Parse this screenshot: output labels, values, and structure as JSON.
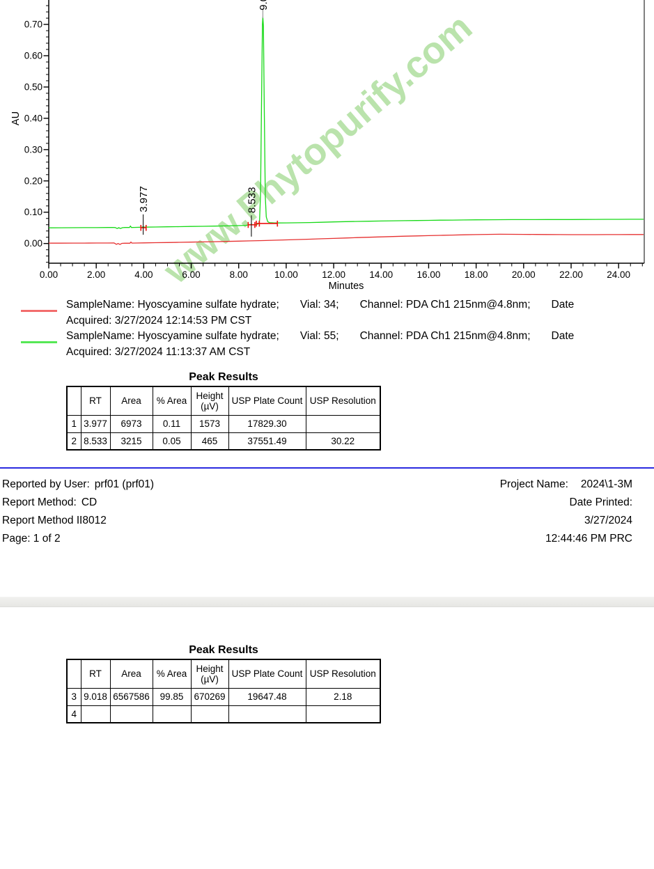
{
  "watermark": {
    "text": "www.Phytopurify.com",
    "color": "#aedf9e"
  },
  "chart_data": {
    "type": "line",
    "title": "",
    "xlabel": "Minutes",
    "ylabel": "AU",
    "xlim": [
      0,
      25.08
    ],
    "ylim": [
      -0.063,
      0.778
    ],
    "grid": false,
    "legend_position": "below",
    "axis_color": "#000000",
    "integration_color": "#ee1111",
    "xticks": {
      "values": [
        0,
        2,
        4,
        6,
        8,
        10,
        12,
        14,
        16,
        18,
        20,
        22,
        24
      ],
      "labels": [
        "0.00",
        "2.00",
        "4.00",
        "6.00",
        "8.00",
        "10.00",
        "12.00",
        "14.00",
        "16.00",
        "18.00",
        "20.00",
        "22.00",
        "24.00"
      ],
      "minor_step": 0.5
    },
    "yticks": {
      "values": [
        0,
        0.1,
        0.2,
        0.3,
        0.4,
        0.5,
        0.6,
        0.7
      ],
      "labels": [
        "0.00",
        "0.10",
        "0.20",
        "0.30",
        "0.40",
        "0.50",
        "0.60",
        "0.70"
      ],
      "minor_step": 0.02
    },
    "series": [
      {
        "name": "Vial 34 (red)",
        "name_id": "red-vial-34",
        "color": "#e63030",
        "points": [
          [
            0,
            0.001
          ],
          [
            0.5,
            0.0011
          ],
          [
            1,
            0.0013
          ],
          [
            1.5,
            0.0014
          ],
          [
            2,
            0.0015
          ],
          [
            2.5,
            0.0016
          ],
          [
            2.75,
            0.0017
          ],
          [
            2.85,
            -0.0026
          ],
          [
            2.92,
            0.0
          ],
          [
            3.0,
            -0.0031
          ],
          [
            3.08,
            0.0004
          ],
          [
            3.2,
            0.0008
          ],
          [
            3.42,
            0.0008
          ],
          [
            3.46,
            0.0047
          ],
          [
            3.5,
            0.0012
          ],
          [
            3.7,
            0.0016
          ],
          [
            4,
            0.002
          ],
          [
            4.5,
            0.0026
          ],
          [
            5,
            0.0031
          ],
          [
            5.5,
            0.0037
          ],
          [
            6,
            0.0044
          ],
          [
            6.5,
            0.0051
          ],
          [
            7,
            0.0058
          ],
          [
            7.5,
            0.0066
          ],
          [
            8,
            0.0075
          ],
          [
            8.5,
            0.0084
          ],
          [
            9,
            0.0094
          ],
          [
            9.5,
            0.0104
          ],
          [
            10,
            0.0115
          ],
          [
            10.5,
            0.0126
          ],
          [
            11,
            0.0138
          ],
          [
            11.5,
            0.015
          ],
          [
            12,
            0.0162
          ],
          [
            12.5,
            0.0175
          ],
          [
            13,
            0.0188
          ],
          [
            13.5,
            0.02
          ],
          [
            14,
            0.0211
          ],
          [
            14.5,
            0.0222
          ],
          [
            15,
            0.0233
          ],
          [
            15.5,
            0.0243
          ],
          [
            16,
            0.0252
          ],
          [
            16.5,
            0.0261
          ],
          [
            17,
            0.0269
          ],
          [
            17.5,
            0.0277
          ],
          [
            18,
            0.0284
          ],
          [
            18.5,
            0.0291
          ],
          [
            19,
            0.0295
          ],
          [
            19.5,
            0.0294
          ],
          [
            20,
            0.0291
          ],
          [
            20.5,
            0.0288
          ],
          [
            21,
            0.0286
          ],
          [
            21.5,
            0.0284
          ],
          [
            22,
            0.0283
          ],
          [
            22.5,
            0.0283
          ],
          [
            23,
            0.0283
          ],
          [
            23.5,
            0.0284
          ],
          [
            24,
            0.0285
          ],
          [
            24.5,
            0.0286
          ],
          [
            25.05,
            0.0287
          ]
        ]
      },
      {
        "name": "Vial 55 (green)",
        "name_id": "green-vial-55",
        "color": "#16d916",
        "points": [
          [
            0,
            0.05
          ],
          [
            0.5,
            0.0502
          ],
          [
            1,
            0.0504
          ],
          [
            1.5,
            0.0506
          ],
          [
            2,
            0.0508
          ],
          [
            2.5,
            0.0512
          ],
          [
            2.7,
            0.0514
          ],
          [
            2.8,
            0.051
          ],
          [
            2.88,
            0.0477
          ],
          [
            2.95,
            0.0504
          ],
          [
            3.02,
            0.0477
          ],
          [
            3.1,
            0.0504
          ],
          [
            3.2,
            0.0511
          ],
          [
            3.4,
            0.0512
          ],
          [
            3.44,
            0.0557
          ],
          [
            3.48,
            0.0512
          ],
          [
            3.6,
            0.0514
          ],
          [
            3.9,
            0.052
          ],
          [
            3.94,
            0.0523
          ],
          [
            3.977,
            0.0539
          ],
          [
            4.02,
            0.0525
          ],
          [
            4.08,
            0.0523
          ],
          [
            4.5,
            0.0528
          ],
          [
            5,
            0.0533
          ],
          [
            5.5,
            0.0538
          ],
          [
            6,
            0.0544
          ],
          [
            6.5,
            0.055
          ],
          [
            7,
            0.0556
          ],
          [
            7.5,
            0.0563
          ],
          [
            8,
            0.0572
          ],
          [
            8.3,
            0.058
          ],
          [
            8.45,
            0.0597
          ],
          [
            8.5,
            0.0602
          ],
          [
            8.533,
            0.0622
          ],
          [
            8.57,
            0.0603
          ],
          [
            8.65,
            0.06
          ],
          [
            8.75,
            0.0608
          ],
          [
            8.85,
            0.0635
          ],
          [
            8.88,
            0.075
          ],
          [
            8.92,
            0.16
          ],
          [
            8.96,
            0.45
          ],
          [
            9.0,
            0.7
          ],
          [
            9.018,
            0.723
          ],
          [
            9.04,
            0.695
          ],
          [
            9.08,
            0.42
          ],
          [
            9.12,
            0.15
          ],
          [
            9.16,
            0.085
          ],
          [
            9.22,
            0.07
          ],
          [
            9.3,
            0.0665
          ],
          [
            9.5,
            0.0655
          ],
          [
            9.63,
            0.0655
          ],
          [
            10,
            0.0658
          ],
          [
            10.5,
            0.0663
          ],
          [
            11,
            0.067
          ],
          [
            11.5,
            0.0678
          ],
          [
            12,
            0.069
          ],
          [
            12.5,
            0.0698
          ],
          [
            13,
            0.0705
          ],
          [
            13.5,
            0.0712
          ],
          [
            14,
            0.0718
          ],
          [
            14.5,
            0.0724
          ],
          [
            15,
            0.0729
          ],
          [
            15.5,
            0.0734
          ],
          [
            16,
            0.0739
          ],
          [
            16.5,
            0.0744
          ],
          [
            17,
            0.0748
          ],
          [
            17.5,
            0.0752
          ],
          [
            18,
            0.0756
          ],
          [
            18.5,
            0.0759
          ],
          [
            19,
            0.0761
          ],
          [
            19.5,
            0.0762
          ],
          [
            20,
            0.0762
          ],
          [
            20.5,
            0.0763
          ],
          [
            21,
            0.0764
          ],
          [
            21.5,
            0.0765
          ],
          [
            22,
            0.0766
          ],
          [
            22.5,
            0.0768
          ],
          [
            23,
            0.0769
          ],
          [
            23.5,
            0.0771
          ],
          [
            24,
            0.0772
          ],
          [
            24.5,
            0.0773
          ],
          [
            25.05,
            0.0775
          ]
        ]
      }
    ],
    "peaks": [
      {
        "rt": "3.977",
        "x": 3.977,
        "line": [
          0.093,
          0.028
        ],
        "label_y": 0.1,
        "line_color": "#222222"
      },
      {
        "rt": "8.533",
        "x": 8.533,
        "line": [
          0.09,
          0.022
        ],
        "label_y": 0.097,
        "line_color": "#222222"
      },
      {
        "rt": "9.018",
        "x": 9.018,
        "line": [
          0.749,
          0.72
        ],
        "label_y": 0.745,
        "line_color": "#999999"
      }
    ],
    "integration_marks": [
      {
        "x1": 3.88,
        "x2": 4.1,
        "y": 0.0505,
        "ticks": [
          3.88,
          4.1
        ]
      },
      {
        "x1": 8.4,
        "x2": 8.68,
        "y": 0.0598,
        "ticks": [
          8.4,
          8.68
        ]
      },
      {
        "x1": 8.74,
        "x2": 9.63,
        "y": 0.064,
        "ticks": [
          8.74,
          8.87,
          9.63
        ]
      }
    ]
  },
  "legend": {
    "entries": [
      {
        "color": "#f26d6d",
        "line1": [
          "SampleName: Hyoscyamine sulfate hydrate;",
          "Vial: 34;",
          "Channel: PDA Ch1 215nm@4.8nm;",
          "Date"
        ],
        "line2": "Acquired: 3/27/2024 12:14:53 PM CST"
      },
      {
        "color": "#55e855",
        "line1": [
          "SampleName: Hyoscyamine sulfate hydrate;",
          "Vial: 55;",
          "Channel: PDA Ch1 215nm@4.8nm;",
          "Date"
        ],
        "line2": "Acquired: 3/27/2024 11:13:37 AM CST"
      }
    ]
  },
  "peak_table_1": {
    "title": "Peak Results",
    "headers": [
      "",
      "RT",
      "Area",
      "% Area",
      "Height (µV)",
      "USP Plate Count",
      "USP Resolution"
    ],
    "rows": [
      [
        "1",
        "3.977",
        "6973",
        "0.11",
        "1573",
        "17829.30",
        ""
      ],
      [
        "2",
        "8.533",
        "3215",
        "0.05",
        "465",
        "37551.49",
        "30.22"
      ]
    ]
  },
  "peak_table_2": {
    "title": "Peak Results",
    "headers": [
      "",
      "RT",
      "Area",
      "% Area",
      "Height (µV)",
      "USP Plate Count",
      "USP Resolution"
    ],
    "rows": [
      [
        "3",
        "9.018",
        "6567586",
        "99.85",
        "670269",
        "19647.48",
        "2.18"
      ],
      [
        "4",
        "",
        "",
        "",
        "",
        "",
        ""
      ]
    ]
  },
  "footer": {
    "left": [
      {
        "label": "Reported by User:",
        "value": "prf01 (prf01)"
      },
      {
        "label": "Report Method:",
        "value": "CD"
      },
      {
        "label": "Report Method ID",
        "value": "8012"
      },
      {
        "label": "Page: 1 of 2",
        "value": ""
      }
    ],
    "right": {
      "project_label": "Project Name:",
      "project_value": "2024\\1-3M",
      "date_printed_label": "Date Printed:",
      "date_value": "3/27/2024",
      "time_value": "12:44:46 PM PRC"
    }
  }
}
